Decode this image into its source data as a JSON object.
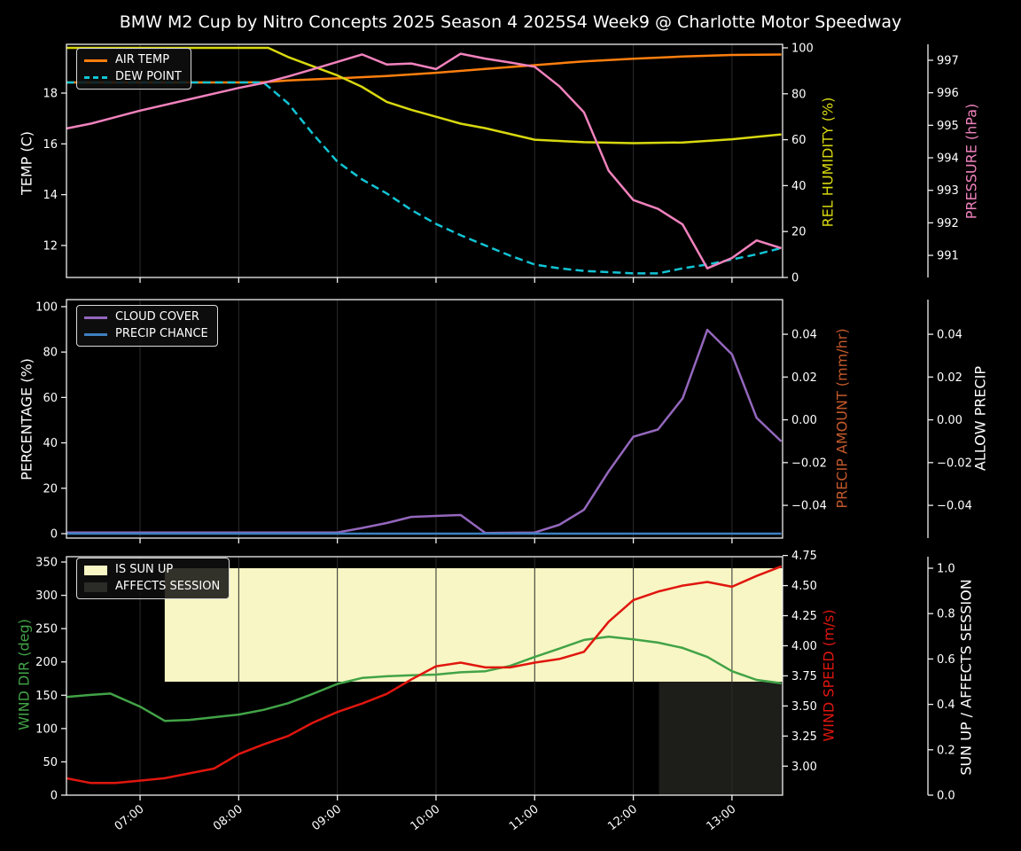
{
  "figure": {
    "title": "BMW M2 Cup by Nitro Concepts 2025 Season 4 2025S4 Week9 @ Charlotte Motor Speedway",
    "background": "#000000",
    "text_color": "#ffffff",
    "grid_color": "#2b2b2b",
    "spine_color": "#efefef"
  },
  "x_axis": {
    "range": [
      6.254,
      13.513
    ],
    "ticks": [
      {
        "value": 7,
        "label": "07:00"
      },
      {
        "value": 8,
        "label": "08:00"
      },
      {
        "value": 9,
        "label": "09:00"
      },
      {
        "value": 10,
        "label": "10:00"
      },
      {
        "value": 11,
        "label": "11:00"
      },
      {
        "value": 12,
        "label": "12:00"
      },
      {
        "value": 13,
        "label": "13:00"
      }
    ]
  },
  "chart_data": [
    {
      "type": "line",
      "plot": {
        "top": 50,
        "bottom": 313
      },
      "axes": [
        {
          "id": "temp",
          "side": "left",
          "label": "TEMP (C)",
          "label_color": "#ffffff",
          "range": [
            10.74,
            19.92
          ],
          "ticks": [
            12,
            14,
            16,
            18
          ],
          "decimals": 0
        },
        {
          "id": "hum",
          "side": "right",
          "label": "REL HUMIDITY (%)",
          "label_color": "#d8d810",
          "range": [
            0,
            101.54
          ],
          "ticks": [
            0,
            20,
            40,
            60,
            80,
            100
          ],
          "decimals": 0
        },
        {
          "id": "press",
          "side": "right2",
          "label": "PRESSURE (hPa)",
          "label_color": "#f182bd",
          "range": [
            990.32,
            997.49
          ],
          "ticks": [
            991,
            992,
            993,
            994,
            995,
            996,
            997
          ],
          "decimals": 0
        }
      ],
      "series": [
        {
          "name": "AIR TEMP",
          "axis": "temp",
          "color": "#ff7f0e",
          "dash": "solid",
          "points": [
            [
              6.25,
              18.42
            ],
            [
              7.0,
              18.42
            ],
            [
              8.0,
              18.42
            ],
            [
              8.25,
              18.43
            ],
            [
              8.5,
              18.5
            ],
            [
              9.0,
              18.58
            ],
            [
              9.5,
              18.67
            ],
            [
              10.0,
              18.8
            ],
            [
              10.5,
              18.95
            ],
            [
              11.0,
              19.1
            ],
            [
              11.5,
              19.25
            ],
            [
              12.0,
              19.35
            ],
            [
              12.5,
              19.44
            ],
            [
              13.0,
              19.5
            ],
            [
              13.5,
              19.52
            ]
          ]
        },
        {
          "name": "DEW POINT",
          "axis": "temp",
          "color": "#12c4d4",
          "dash": "dashed",
          "points": [
            [
              6.25,
              18.42
            ],
            [
              8.25,
              18.42
            ],
            [
              8.5,
              17.6
            ],
            [
              8.75,
              16.4
            ],
            [
              9.0,
              15.3
            ],
            [
              9.25,
              14.6
            ],
            [
              9.5,
              14.05
            ],
            [
              9.75,
              13.4
            ],
            [
              10.0,
              12.85
            ],
            [
              10.25,
              12.4
            ],
            [
              10.5,
              12.0
            ],
            [
              10.75,
              11.6
            ],
            [
              11.0,
              11.25
            ],
            [
              11.25,
              11.1
            ],
            [
              11.5,
              11.0
            ],
            [
              11.75,
              10.95
            ],
            [
              12.0,
              10.9
            ],
            [
              12.25,
              10.9
            ],
            [
              12.5,
              11.1
            ],
            [
              12.75,
              11.25
            ],
            [
              13.0,
              11.45
            ],
            [
              13.25,
              11.65
            ],
            [
              13.5,
              11.9
            ]
          ]
        },
        {
          "name": "REL HUMIDITY",
          "axis": "hum",
          "color": "#d8d810",
          "dash": "solid",
          "points": [
            [
              6.25,
              100
            ],
            [
              8.3,
              100
            ],
            [
              8.5,
              96
            ],
            [
              8.75,
              92
            ],
            [
              9.0,
              88
            ],
            [
              9.25,
              83
            ],
            [
              9.5,
              76.5
            ],
            [
              9.75,
              73
            ],
            [
              10.0,
              70
            ],
            [
              10.25,
              67
            ],
            [
              10.5,
              65
            ],
            [
              10.75,
              62.5
            ],
            [
              11.0,
              60
            ],
            [
              11.5,
              58.9
            ],
            [
              12.0,
              58.5
            ],
            [
              12.5,
              58.8
            ],
            [
              13.0,
              60.2
            ],
            [
              13.5,
              62.3
            ]
          ]
        },
        {
          "name": "PRESSURE",
          "axis": "press",
          "color": "#f182bd",
          "dash": "solid",
          "points": [
            [
              6.25,
              994.9
            ],
            [
              6.5,
              995.05
            ],
            [
              7.0,
              995.45
            ],
            [
              7.5,
              995.8
            ],
            [
              8.0,
              996.15
            ],
            [
              8.25,
              996.3
            ],
            [
              8.5,
              996.5
            ],
            [
              8.75,
              996.72
            ],
            [
              9.0,
              996.95
            ],
            [
              9.25,
              997.18
            ],
            [
              9.5,
              996.87
            ],
            [
              9.75,
              996.9
            ],
            [
              10.0,
              996.73
            ],
            [
              10.25,
              997.2
            ],
            [
              10.5,
              997.05
            ],
            [
              10.75,
              996.93
            ],
            [
              11.0,
              996.8
            ],
            [
              11.25,
              996.2
            ],
            [
              11.5,
              995.4
            ],
            [
              11.75,
              993.6
            ],
            [
              12.0,
              992.7
            ],
            [
              12.25,
              992.43
            ],
            [
              12.5,
              991.95
            ],
            [
              12.75,
              990.6
            ],
            [
              13.0,
              990.92
            ],
            [
              13.25,
              991.46
            ],
            [
              13.5,
              991.22
            ]
          ]
        }
      ],
      "legend": {
        "items": [
          {
            "label": "AIR TEMP",
            "color": "#ff7f0e",
            "type": "line",
            "dash": "solid"
          },
          {
            "label": "DEW POINT",
            "color": "#12c4d4",
            "type": "line",
            "dash": "dashed"
          }
        ]
      }
    },
    {
      "type": "line",
      "plot": {
        "top": 338,
        "bottom": 607
      },
      "axes": [
        {
          "id": "pct",
          "side": "left",
          "label": "PERCENTAGE (%)",
          "label_color": "#ffffff",
          "range": [
            -1.95,
            103.1
          ],
          "ticks": [
            0,
            20,
            40,
            60,
            80,
            100
          ],
          "decimals": 0
        },
        {
          "id": "precip",
          "side": "right",
          "label": "PRECIP AMOUNT (mm/hr)",
          "label_color": "#c3592b",
          "range": [
            -0.0553,
            0.0562
          ],
          "ticks": [
            -0.04,
            -0.02,
            0.0,
            0.02,
            0.04
          ],
          "decimals": 2
        },
        {
          "id": "allow",
          "side": "right2",
          "label": "ALLOW PRECIP",
          "label_color": "#ffffff",
          "range": [
            -0.0553,
            0.0562
          ],
          "ticks": [
            -0.04,
            -0.02,
            0.0,
            0.02,
            0.04
          ],
          "decimals": 2
        }
      ],
      "series": [
        {
          "name": "CLOUD COVER",
          "axis": "pct",
          "color": "#9467bd",
          "dash": "solid",
          "points": [
            [
              6.25,
              0.5
            ],
            [
              9.0,
              0.5
            ],
            [
              9.25,
              2.5
            ],
            [
              9.5,
              4.7
            ],
            [
              9.75,
              7.4
            ],
            [
              10.0,
              7.8
            ],
            [
              10.25,
              8.2
            ],
            [
              10.5,
              0.3
            ],
            [
              11.0,
              0.5
            ],
            [
              11.25,
              3.9
            ],
            [
              11.5,
              10.5
            ],
            [
              11.75,
              27.5
            ],
            [
              12.0,
              42.7
            ],
            [
              12.25,
              45.9
            ],
            [
              12.5,
              59.6
            ],
            [
              12.75,
              89.8
            ],
            [
              13.0,
              79.0
            ],
            [
              13.25,
              51.0
            ],
            [
              13.5,
              40.6
            ]
          ]
        },
        {
          "name": "PRECIP CHANCE",
          "axis": "pct",
          "color": "#3d80c0",
          "dash": "solid",
          "points": [
            [
              6.25,
              0
            ],
            [
              13.5,
              0
            ]
          ]
        }
      ],
      "legend": {
        "items": [
          {
            "label": "CLOUD COVER",
            "color": "#9467bd",
            "type": "line",
            "dash": "solid"
          },
          {
            "label": "PRECIP CHANCE",
            "color": "#3d80c0",
            "type": "line",
            "dash": "solid"
          }
        ]
      }
    },
    {
      "type": "line",
      "plot": {
        "top": 628,
        "bottom": 897
      },
      "axes": [
        {
          "id": "dir",
          "side": "left",
          "label": "WIND DIR (deg)",
          "label_color": "#42a347",
          "range": [
            0,
            358
          ],
          "ticks": [
            0,
            50,
            100,
            150,
            200,
            250,
            300,
            350
          ],
          "decimals": 0
        },
        {
          "id": "speed",
          "side": "right",
          "label": "WIND SPEED (m/s)",
          "label_color": "#e0160e",
          "range": [
            2.759,
            4.74
          ],
          "ticks": [
            3.0,
            3.25,
            3.5,
            3.75,
            4.0,
            4.25,
            4.5,
            4.75
          ],
          "decimals": 2
        },
        {
          "id": "sun",
          "side": "right2",
          "label": "SUN UP / AFFECTS SESSION",
          "label_color": "#ffffff",
          "range": [
            0,
            1.0508
          ],
          "ticks": [
            0.0,
            0.2,
            0.4,
            0.6,
            0.8,
            1.0
          ],
          "decimals": 1
        }
      ],
      "regions": [
        {
          "name": "IS SUN UP",
          "axis": "sun",
          "x": [
            7.25,
            13.513
          ],
          "y": [
            0.5,
            1.0
          ],
          "color": "#f8f6c4"
        },
        {
          "name": "AFFECTS SESSION",
          "axis": "sun",
          "x": [
            12.26,
            13.513
          ],
          "y": [
            0.0,
            0.5
          ],
          "color": "#1d1d1a"
        }
      ],
      "series": [
        {
          "name": "WIND DIR",
          "axis": "dir",
          "color": "#42a347",
          "dash": "solid",
          "points": [
            [
              6.25,
              147.5
            ],
            [
              6.5,
              150.5
            ],
            [
              6.7,
              152.5
            ],
            [
              7.0,
              133
            ],
            [
              7.25,
              111.5
            ],
            [
              7.5,
              113
            ],
            [
              7.75,
              117
            ],
            [
              8.0,
              121
            ],
            [
              8.25,
              128
            ],
            [
              8.5,
              138
            ],
            [
              8.75,
              152
            ],
            [
              9.0,
              167
            ],
            [
              9.25,
              176
            ],
            [
              9.5,
              178.5
            ],
            [
              9.75,
              180
            ],
            [
              10.0,
              181
            ],
            [
              10.25,
              184.5
            ],
            [
              10.5,
              186
            ],
            [
              10.75,
              194
            ],
            [
              11.0,
              207.5
            ],
            [
              11.25,
              220
            ],
            [
              11.5,
              233
            ],
            [
              11.75,
              238
            ],
            [
              12.0,
              234
            ],
            [
              12.25,
              229
            ],
            [
              12.5,
              221
            ],
            [
              12.75,
              207.5
            ],
            [
              13.0,
              186
            ],
            [
              13.25,
              173
            ],
            [
              13.5,
              168
            ]
          ]
        },
        {
          "name": "WIND SPEED",
          "axis": "speed",
          "color": "#e0160e",
          "dash": "solid",
          "points": [
            [
              6.25,
              2.9
            ],
            [
              6.5,
              2.86
            ],
            [
              6.75,
              2.86
            ],
            [
              7.0,
              2.88
            ],
            [
              7.25,
              2.9
            ],
            [
              7.5,
              2.94
            ],
            [
              7.75,
              2.98
            ],
            [
              8.0,
              3.1
            ],
            [
              8.25,
              3.18
            ],
            [
              8.5,
              3.25
            ],
            [
              8.75,
              3.36
            ],
            [
              9.0,
              3.45
            ],
            [
              9.25,
              3.52
            ],
            [
              9.5,
              3.6
            ],
            [
              9.75,
              3.72
            ],
            [
              10.0,
              3.83
            ],
            [
              10.25,
              3.86
            ],
            [
              10.5,
              3.82
            ],
            [
              10.75,
              3.82
            ],
            [
              11.0,
              3.86
            ],
            [
              11.25,
              3.89
            ],
            [
              11.5,
              3.95
            ],
            [
              11.75,
              4.2
            ],
            [
              12.0,
              4.38
            ],
            [
              12.25,
              4.45
            ],
            [
              12.5,
              4.5
            ],
            [
              12.75,
              4.53
            ],
            [
              13.0,
              4.49
            ],
            [
              13.25,
              4.58
            ],
            [
              13.5,
              4.66
            ]
          ]
        }
      ],
      "legend": {
        "items": [
          {
            "label": "IS SUN UP",
            "color": "#f8f6c4",
            "type": "patch"
          },
          {
            "label": "AFFECTS SESSION",
            "color": "#2b2b27",
            "type": "patch"
          }
        ]
      }
    }
  ]
}
